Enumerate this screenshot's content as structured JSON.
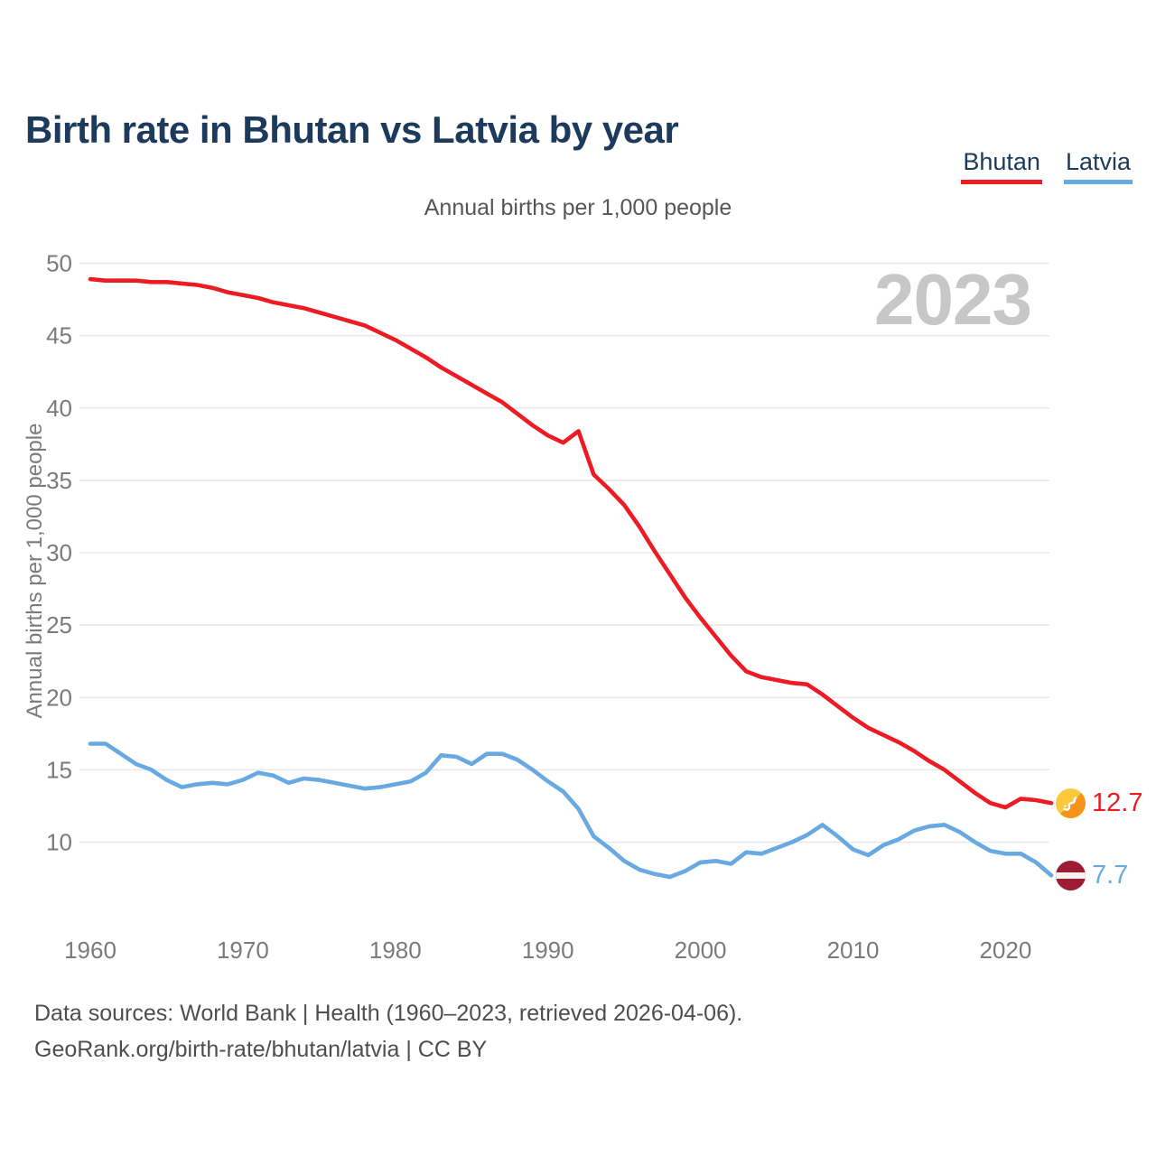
{
  "title": "Birth rate in Bhutan vs Latvia by year",
  "subtitle": "Annual births per 1,000 people",
  "watermark": "2023",
  "legend": [
    {
      "label": "Bhutan",
      "color": "#ed1c24"
    },
    {
      "label": "Latvia",
      "color": "#68a9e2"
    }
  ],
  "end_labels": [
    {
      "series": "Bhutan",
      "value": "12.7",
      "color": "#ed1c24",
      "flag": "bhutan-flag-icon"
    },
    {
      "series": "Latvia",
      "value": "7.7",
      "color": "#68a9e2",
      "flag": "latvia-flag-icon"
    }
  ],
  "footer": {
    "line1": "Data sources: World Bank | Health (1960–2023, retrieved 2026-04-06).",
    "line2": "GeoRank.org/birth-rate/bhutan/latvia | CC BY"
  },
  "colors": {
    "title": "#1b3a5c",
    "gridline": "#e8e8e8",
    "tick_text": "#7b7b7b",
    "watermark": "#c7c7c7"
  },
  "chart_data": {
    "type": "line",
    "title": "Birth rate in Bhutan vs Latvia by year",
    "subtitle": "Annual births per 1,000 people",
    "ylabel": "Annual births per 1,000 people",
    "xlabel": "",
    "grid": true,
    "legend_position": "top-right",
    "ylim": [
      10,
      50
    ],
    "yticks": [
      10,
      15,
      20,
      25,
      30,
      35,
      40,
      45,
      50
    ],
    "xticks": [
      1960,
      1970,
      1980,
      1990,
      2000,
      2010,
      2020
    ],
    "x": [
      1960,
      1961,
      1962,
      1963,
      1964,
      1965,
      1966,
      1967,
      1968,
      1969,
      1970,
      1971,
      1972,
      1973,
      1974,
      1975,
      1976,
      1977,
      1978,
      1979,
      1980,
      1981,
      1982,
      1983,
      1984,
      1985,
      1986,
      1987,
      1988,
      1989,
      1990,
      1991,
      1992,
      1993,
      1994,
      1995,
      1996,
      1997,
      1998,
      1999,
      2000,
      2001,
      2002,
      2003,
      2004,
      2005,
      2006,
      2007,
      2008,
      2009,
      2010,
      2011,
      2012,
      2013,
      2014,
      2015,
      2016,
      2017,
      2018,
      2019,
      2020,
      2021,
      2022,
      2023
    ],
    "series": [
      {
        "name": "Bhutan",
        "color": "#ed1c24",
        "values": [
          48.9,
          48.8,
          48.8,
          48.8,
          48.7,
          48.7,
          48.6,
          48.5,
          48.3,
          48.0,
          47.8,
          47.6,
          47.3,
          47.1,
          46.9,
          46.6,
          46.3,
          46.0,
          45.7,
          45.2,
          44.7,
          44.1,
          43.5,
          42.8,
          42.2,
          41.6,
          41.0,
          40.4,
          39.6,
          38.8,
          38.1,
          37.6,
          38.4,
          35.4,
          34.4,
          33.3,
          31.8,
          30.1,
          28.5,
          26.9,
          25.5,
          24.2,
          22.9,
          21.8,
          21.4,
          21.2,
          21.0,
          20.9,
          20.2,
          19.4,
          18.6,
          17.9,
          17.4,
          16.9,
          16.3,
          15.6,
          15.0,
          14.2,
          13.4,
          12.7,
          12.4,
          13.0,
          12.9,
          12.7
        ]
      },
      {
        "name": "Latvia",
        "color": "#68a9e2",
        "values": [
          16.8,
          16.8,
          16.1,
          15.4,
          15.0,
          14.3,
          13.8,
          14.0,
          14.1,
          14.0,
          14.3,
          14.8,
          14.6,
          14.1,
          14.4,
          14.3,
          14.1,
          13.9,
          13.7,
          13.8,
          14.0,
          14.2,
          14.8,
          16.0,
          15.9,
          15.4,
          16.1,
          16.1,
          15.7,
          15.0,
          14.2,
          13.5,
          12.3,
          10.4,
          9.6,
          8.7,
          8.1,
          7.8,
          7.6,
          8.0,
          8.6,
          8.7,
          8.5,
          9.3,
          9.2,
          9.6,
          10.0,
          10.5,
          11.2,
          10.4,
          9.5,
          9.1,
          9.8,
          10.2,
          10.8,
          11.1,
          11.2,
          10.7,
          10.0,
          9.4,
          9.2,
          9.2,
          8.6,
          7.7
        ]
      }
    ]
  }
}
